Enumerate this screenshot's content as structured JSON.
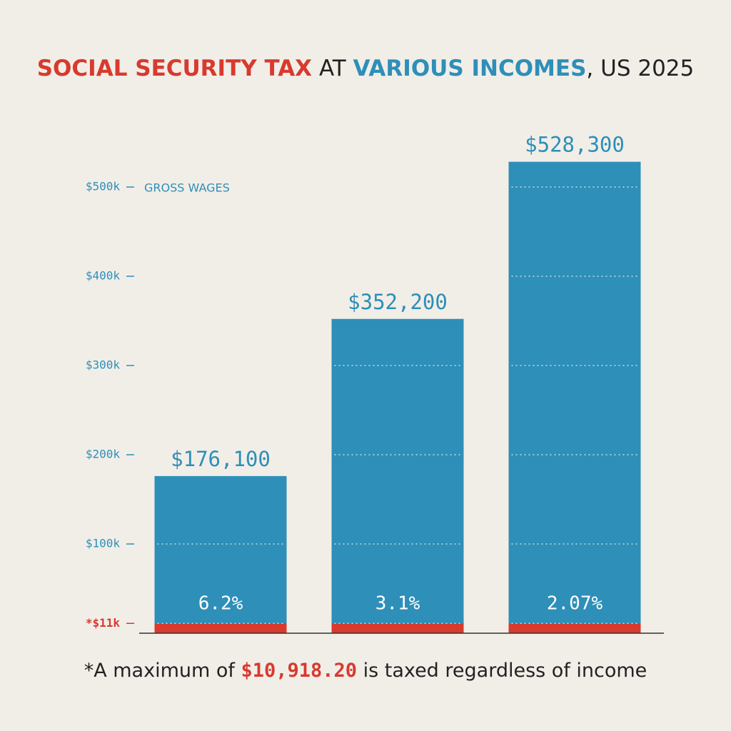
{
  "chart_data": {
    "type": "bar",
    "title_parts": [
      {
        "text": "SOCIAL SECURITY TAX",
        "color": "#d83a2e"
      },
      {
        "text": " AT ",
        "color": "#222222"
      },
      {
        "text": "VARIOUS INCOMES",
        "color": "#2e8fb8"
      },
      {
        "text": ", US 2025",
        "color": "#222222"
      }
    ],
    "y_label": "GROSS WAGES",
    "categories": [
      null,
      null,
      null
    ],
    "series": [
      {
        "name": "Gross wages",
        "color": "#2e8fb8",
        "values": [
          176100,
          352200,
          528300
        ],
        "value_labels": [
          "$176,100",
          "$352,200",
          "$528,300"
        ]
      },
      {
        "name": "Social Security tax",
        "color": "#d83a2e",
        "values": [
          10918.2,
          10918.2,
          10918.2
        ]
      }
    ],
    "rates": {
      "values": [
        6.2,
        3.1,
        2.07
      ],
      "value_labels": [
        "6.2%",
        "3.1%",
        "2.07%"
      ]
    },
    "ylim": [
      0,
      550000
    ],
    "yticks": [
      {
        "value": 11000,
        "label": "*$11k",
        "color": "#d83a2e"
      },
      {
        "value": 100000,
        "label": "$100k",
        "color": "#2e8fb8"
      },
      {
        "value": 200000,
        "label": "$200k",
        "color": "#2e8fb8"
      },
      {
        "value": 300000,
        "label": "$300k",
        "color": "#2e8fb8"
      },
      {
        "value": 400000,
        "label": "$400k",
        "color": "#2e8fb8"
      },
      {
        "value": 500000,
        "label": "$500k",
        "color": "#2e8fb8"
      }
    ],
    "grid": true,
    "footnote": {
      "prefix": "*A maximum of",
      "amount": "$10,918.20",
      "suffix": "is taxed regardless of income"
    }
  }
}
